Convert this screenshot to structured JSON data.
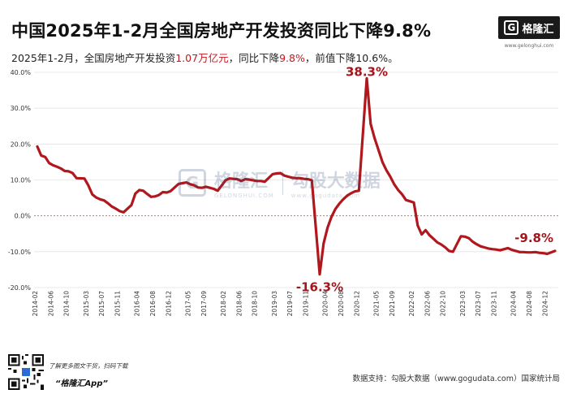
{
  "header": {
    "title": "中国2025年1-2月全国房地产开发投资同比下降9.8%",
    "subtitle_pre": "2025年1-2月，全国房地产开发投资",
    "subtitle_hl1": "1.07万亿元",
    "subtitle_mid": "，同比下降",
    "subtitle_hl2": "9.8%",
    "subtitle_post": "，前值下降10.6%。"
  },
  "brand": {
    "logo_mark": "G",
    "logo_name": "格隆汇",
    "logo_url": "www.gelonghui.com",
    "watermark_name": "格隆汇",
    "watermark_sub": "GELONGHUI.COM",
    "watermark_right": "勾股大数据",
    "watermark_right_sub": "www.gogudata.com"
  },
  "footer": {
    "qr_caption": "了解更多图文干货，扫码下载",
    "app_name": "“格隆汇App”",
    "source": "数据支持：勾股大数据（www.gogudata.com）国家统计局"
  },
  "colors": {
    "line": "#b0181d",
    "zero_line": "#d9534f",
    "highlight": "#c8161d",
    "label": "#a3151b"
  },
  "chart_data": {
    "type": "line",
    "title": "",
    "xlabel": "",
    "ylabel": "",
    "ylim": [
      -20,
      40
    ],
    "yticks": [
      "-20.0%",
      "-10.0%",
      "0.0%",
      "10.0%",
      "20.0%",
      "30.0%",
      "40.0%"
    ],
    "ytick_values": [
      -20,
      -10,
      0,
      10,
      20,
      30,
      40
    ],
    "xtick_labels": [
      "2014-02",
      "2014-06",
      "2014-10",
      "2015-03",
      "2015-07",
      "2015-11",
      "2016-04",
      "2016-08",
      "2016-12",
      "2017-05",
      "2017-09",
      "2018-02",
      "2018-06",
      "2018-10",
      "2019-03",
      "2019-07",
      "2019-11",
      "2020-04",
      "2020-08",
      "2020-12",
      "2021-05",
      "2021-09",
      "2022-02",
      "2022-06",
      "2022-10",
      "2023-03",
      "2023-07",
      "2023-11",
      "2024-04",
      "2024-08",
      "2024-12"
    ],
    "grid": "horizontal",
    "zero_line": "dashed",
    "x": [
      "2014-02",
      "2014-03",
      "2014-04",
      "2014-05",
      "2014-06",
      "2014-07",
      "2014-08",
      "2014-09",
      "2014-10",
      "2014-11",
      "2014-12",
      "2015-02",
      "2015-03",
      "2015-04",
      "2015-05",
      "2015-06",
      "2015-07",
      "2015-08",
      "2015-09",
      "2015-10",
      "2015-11",
      "2015-12",
      "2016-02",
      "2016-03",
      "2016-04",
      "2016-05",
      "2016-06",
      "2016-07",
      "2016-08",
      "2016-09",
      "2016-10",
      "2016-11",
      "2016-12",
      "2017-02",
      "2017-03",
      "2017-04",
      "2017-05",
      "2017-06",
      "2017-07",
      "2017-08",
      "2017-09",
      "2017-10",
      "2017-11",
      "2017-12",
      "2018-02",
      "2018-03",
      "2018-04",
      "2018-05",
      "2018-06",
      "2018-07",
      "2018-08",
      "2018-09",
      "2018-10",
      "2018-11",
      "2018-12",
      "2019-02",
      "2019-03",
      "2019-04",
      "2019-05",
      "2019-06",
      "2019-07",
      "2019-08",
      "2019-09",
      "2019-10",
      "2019-11",
      "2019-12",
      "2020-02",
      "2020-03",
      "2020-04",
      "2020-05",
      "2020-06",
      "2020-07",
      "2020-08",
      "2020-09",
      "2020-10",
      "2020-11",
      "2020-12",
      "2021-02",
      "2021-03",
      "2021-04",
      "2021-05",
      "2021-06",
      "2021-07",
      "2021-08",
      "2021-09",
      "2021-10",
      "2021-11",
      "2021-12",
      "2022-02",
      "2022-03",
      "2022-04",
      "2022-05",
      "2022-06",
      "2022-07",
      "2022-08",
      "2022-09",
      "2022-10",
      "2022-11",
      "2022-12",
      "2023-02",
      "2023-03",
      "2023-04",
      "2023-05",
      "2023-06",
      "2023-07",
      "2023-08",
      "2023-09",
      "2023-10",
      "2023-11",
      "2023-12",
      "2024-02",
      "2024-03",
      "2024-04",
      "2024-05",
      "2024-06",
      "2024-07",
      "2024-08",
      "2024-09",
      "2024-10",
      "2024-11",
      "2024-12",
      "2025-02"
    ],
    "series": [
      {
        "values": [
          19.3,
          16.8,
          16.4,
          14.7,
          14.1,
          13.7,
          13.2,
          12.5,
          12.4,
          11.9,
          10.5,
          10.4,
          8.5,
          6.0,
          5.1,
          4.6,
          4.3,
          3.5,
          2.6,
          2.0,
          1.3,
          1.0,
          3.0,
          6.2,
          7.2,
          7.0,
          6.1,
          5.3,
          5.4,
          5.8,
          6.6,
          6.5,
          6.9,
          8.9,
          9.1,
          9.3,
          8.8,
          8.5,
          7.9,
          7.8,
          8.1,
          7.8,
          7.5,
          7.0,
          9.9,
          10.4,
          10.3,
          10.2,
          9.7,
          10.2,
          10.1,
          9.9,
          9.7,
          9.7,
          9.5,
          11.6,
          11.8,
          11.9,
          11.2,
          10.9,
          10.6,
          10.5,
          10.5,
          10.3,
          10.2,
          9.9,
          -16.3,
          -7.7,
          -3.3,
          -0.3,
          1.9,
          3.4,
          4.6,
          5.6,
          6.3,
          6.8,
          7.0,
          38.3,
          25.6,
          21.6,
          18.3,
          15.0,
          12.7,
          10.9,
          8.8,
          7.2,
          6.0,
          4.4,
          3.7,
          -2.7,
          -5.2,
          -4.0,
          -5.4,
          -6.4,
          -7.4,
          -8.0,
          -8.8,
          -9.8,
          -10.0,
          -5.7,
          -5.8,
          -6.2,
          -7.2,
          -7.9,
          -8.5,
          -8.8,
          -9.1,
          -9.3,
          -9.4,
          -9.6,
          -9.0,
          -9.5,
          -9.8,
          -10.1,
          -10.1,
          -10.2,
          -10.2,
          -10.1,
          -10.3,
          -10.4,
          -10.6,
          -9.8
        ]
      }
    ],
    "annotations": [
      {
        "x": "2021-02",
        "text": "38.3%"
      },
      {
        "x": "2020-02",
        "text": "-16.3%"
      },
      {
        "x": "2025-02",
        "text": "-9.8%"
      }
    ]
  }
}
